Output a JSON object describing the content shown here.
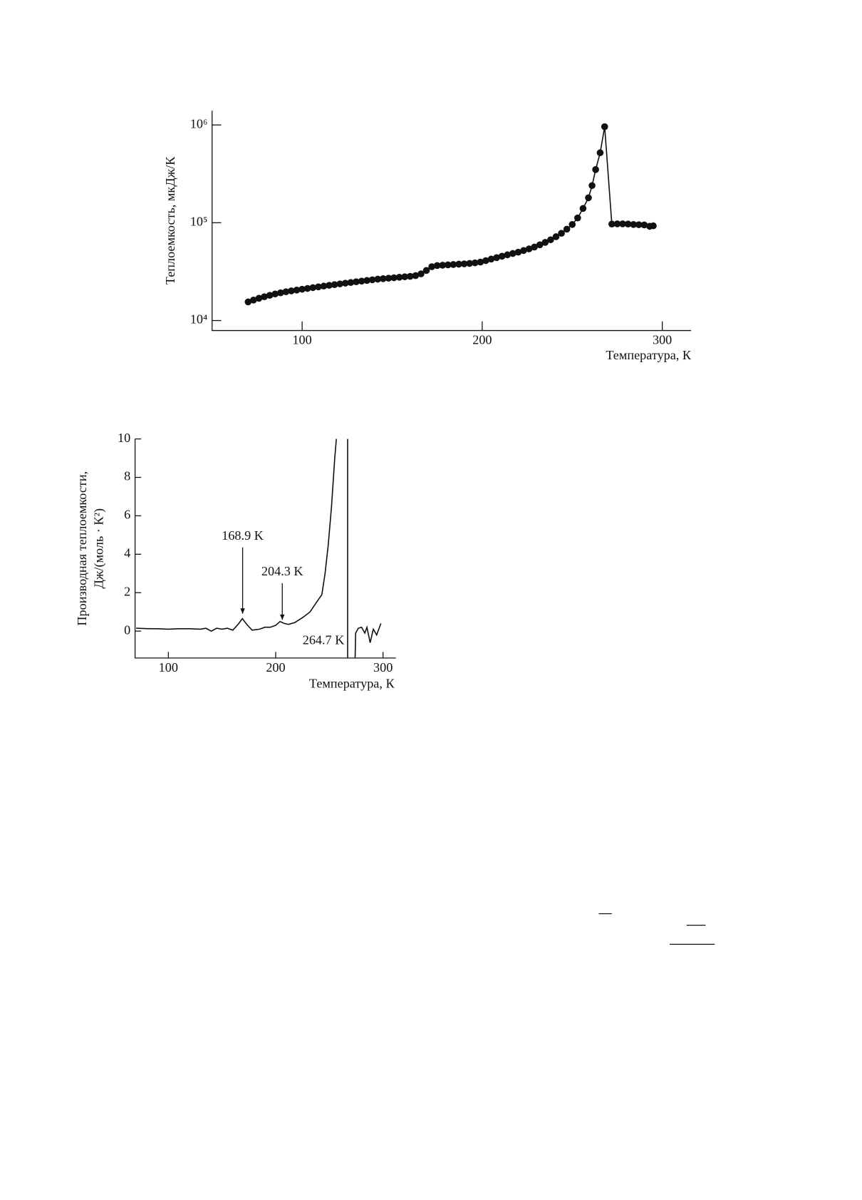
{
  "chart_data": [
    {
      "type": "line",
      "yscale": "log",
      "marker": true,
      "color": "#111",
      "ylabel": "Теплоемкость, мкДж/К",
      "xlabel": "Температура, К",
      "xlim": [
        50,
        316
      ],
      "ylim": [
        7900,
        1400000
      ],
      "xticks": [
        100,
        200,
        300
      ],
      "yticks": [
        {
          "value": 10000,
          "label": "10⁴"
        },
        {
          "value": 100000,
          "label": "10⁵"
        },
        {
          "value": 1000000,
          "label": "10⁶"
        }
      ],
      "x": [
        70,
        73,
        76,
        79,
        82,
        85,
        88,
        91,
        94,
        97,
        100,
        103,
        106,
        109,
        112,
        115,
        118,
        121,
        124,
        127,
        130,
        133,
        136,
        139,
        142,
        145,
        148,
        151,
        154,
        157,
        160,
        163,
        166,
        169,
        172,
        175,
        178,
        181,
        184,
        187,
        190,
        193,
        196,
        199,
        202,
        205,
        208,
        211,
        214,
        217,
        220,
        223,
        226,
        229,
        232,
        235,
        238,
        241,
        244,
        247,
        250,
        253,
        256,
        259,
        261,
        263,
        265.5,
        268,
        272,
        275,
        278,
        281,
        284,
        287,
        290,
        293,
        295
      ],
      "values": [
        15500,
        16200,
        16900,
        17500,
        18100,
        18700,
        19200,
        19700,
        20100,
        20500,
        20900,
        21300,
        21700,
        22100,
        22500,
        22900,
        23300,
        23700,
        24100,
        24500,
        24900,
        25300,
        25700,
        26100,
        26500,
        26800,
        27100,
        27400,
        27700,
        28000,
        28300,
        28800,
        30000,
        32500,
        35500,
        36500,
        36800,
        37100,
        37400,
        37700,
        38000,
        38400,
        38900,
        39600,
        41000,
        42500,
        44000,
        45500,
        47000,
        48500,
        50000,
        52000,
        54000,
        56500,
        59500,
        63000,
        67000,
        72000,
        78000,
        86000,
        96000,
        112000,
        140000,
        180000,
        240000,
        350000,
        520000,
        960000,
        97000,
        97500,
        97500,
        97000,
        96000,
        95500,
        95000,
        92000,
        93000
      ]
    },
    {
      "type": "line",
      "color": "#111",
      "ylabel": [
        "Производная теплоемкости,",
        "Дж/(моль · К²)"
      ],
      "xlabel": "Температура, К",
      "xlim": [
        69,
        312
      ],
      "ylim": [
        -1.4,
        10
      ],
      "xticks": [
        100,
        200,
        300
      ],
      "yticks": [
        0,
        2,
        4,
        6,
        8,
        10
      ],
      "annotations": [
        "168.9 K",
        "204.3 K",
        "264.7 K"
      ],
      "x": [
        70,
        80,
        90,
        100,
        110,
        120,
        130,
        135,
        140,
        145,
        150,
        155,
        160,
        165,
        169,
        173,
        178,
        185,
        190,
        195,
        200,
        204,
        208,
        212,
        218,
        225,
        232,
        238,
        243,
        246,
        249,
        252,
        255,
        256.5,
        null,
        267,
        267,
        null,
        274,
        274.5,
        277,
        280,
        283,
        285,
        288,
        291,
        294,
        298
      ],
      "values": [
        0.15,
        0.13,
        0.12,
        0.1,
        0.12,
        0.12,
        0.1,
        0.15,
        0.0,
        0.15,
        0.1,
        0.15,
        0.05,
        0.35,
        0.65,
        0.35,
        0.05,
        0.1,
        0.2,
        0.2,
        0.3,
        0.5,
        0.4,
        0.35,
        0.45,
        0.7,
        1.0,
        1.5,
        1.9,
        3,
        4.5,
        6.5,
        9,
        10,
        null,
        10,
        -1.4,
        null,
        -1.4,
        -0.1,
        0.15,
        0.2,
        -0.1,
        0.2,
        -0.6,
        0.1,
        -0.2,
        0.4
      ]
    }
  ]
}
